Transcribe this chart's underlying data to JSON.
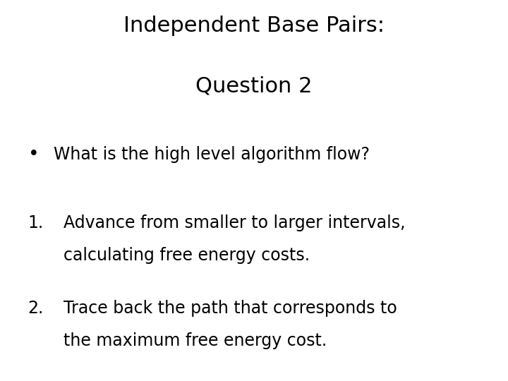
{
  "title_line1": "Independent Base Pairs:",
  "title_line2": "Question 2",
  "bullet_text": "What is the high level algorithm flow?",
  "numbered_items": [
    [
      "Advance from smaller to larger intervals,",
      "calculating free energy costs."
    ],
    [
      "Trace back the path that corresponds to",
      "the maximum free energy cost."
    ]
  ],
  "background_color": "#ffffff",
  "text_color": "#000000",
  "title_fontsize": 22,
  "body_fontsize": 17,
  "font_family": "DejaVu Sans"
}
